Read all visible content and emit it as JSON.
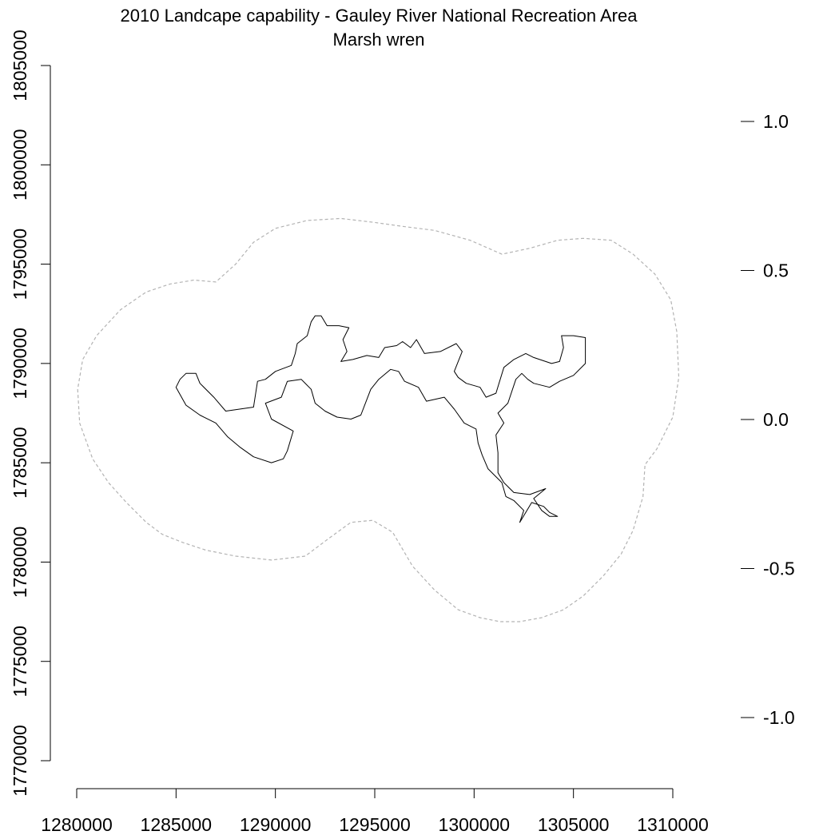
{
  "plot": {
    "title_line1": "2010 Landcape capability - Gauley River National Recreation Area",
    "title_line2": "Marsh wren"
  },
  "chart_data": {
    "type": "map",
    "title": "2010 Landcape capability - Gauley River National Recreation Area",
    "subtitle": "Marsh wren",
    "xlim": [
      1280000,
      1310000
    ],
    "ylim": [
      1770000,
      1805000
    ],
    "x_ticks": [
      1280000,
      1285000,
      1290000,
      1295000,
      1300000,
      1305000,
      1310000
    ],
    "y_ticks": [
      1770000,
      1775000,
      1780000,
      1785000,
      1790000,
      1795000,
      1800000,
      1805000
    ],
    "legend_scale_ticks": [
      1.0,
      0.5,
      0.0,
      -0.5,
      -1.0
    ],
    "buffer_color": "#b3b3b3",
    "boundary_color": "#000000",
    "buffer_boundary": [
      [
        1280050,
        1788700
      ],
      [
        1280150,
        1787000
      ],
      [
        1280800,
        1785200
      ],
      [
        1281600,
        1784000
      ],
      [
        1282500,
        1783000
      ],
      [
        1283500,
        1782000
      ],
      [
        1284300,
        1781400
      ],
      [
        1285300,
        1781000
      ],
      [
        1286500,
        1780600
      ],
      [
        1288000,
        1780300
      ],
      [
        1289800,
        1780100
      ],
      [
        1291500,
        1780300
      ],
      [
        1292700,
        1781200
      ],
      [
        1293800,
        1782000
      ],
      [
        1294900,
        1782100
      ],
      [
        1295900,
        1781500
      ],
      [
        1296900,
        1779800
      ],
      [
        1298000,
        1778600
      ],
      [
        1299200,
        1777600
      ],
      [
        1300300,
        1777200
      ],
      [
        1301300,
        1777000
      ],
      [
        1302300,
        1777000
      ],
      [
        1303400,
        1777200
      ],
      [
        1304500,
        1777600
      ],
      [
        1305500,
        1778300
      ],
      [
        1306500,
        1779300
      ],
      [
        1307400,
        1780400
      ],
      [
        1308000,
        1781600
      ],
      [
        1308500,
        1783300
      ],
      [
        1308600,
        1784900
      ],
      [
        1309200,
        1785700
      ],
      [
        1310000,
        1787300
      ],
      [
        1310300,
        1789300
      ],
      [
        1310200,
        1791600
      ],
      [
        1309900,
        1793200
      ],
      [
        1309100,
        1794500
      ],
      [
        1308000,
        1795500
      ],
      [
        1306900,
        1796200
      ],
      [
        1305500,
        1796300
      ],
      [
        1304200,
        1796200
      ],
      [
        1302800,
        1795800
      ],
      [
        1301400,
        1795500
      ],
      [
        1299800,
        1796200
      ],
      [
        1298000,
        1796700
      ],
      [
        1296400,
        1796900
      ],
      [
        1295000,
        1797100
      ],
      [
        1293300,
        1797300
      ],
      [
        1291600,
        1797200
      ],
      [
        1290000,
        1796800
      ],
      [
        1288900,
        1796100
      ],
      [
        1288000,
        1795000
      ],
      [
        1287000,
        1794100
      ],
      [
        1285900,
        1794200
      ],
      [
        1284700,
        1794000
      ],
      [
        1283500,
        1793600
      ],
      [
        1282200,
        1792700
      ],
      [
        1281000,
        1791400
      ],
      [
        1280300,
        1790200
      ],
      [
        1280050,
        1788700
      ]
    ],
    "park_boundary": [
      [
        1285000,
        1788800
      ],
      [
        1285200,
        1789200
      ],
      [
        1285500,
        1789500
      ],
      [
        1286000,
        1789500
      ],
      [
        1286200,
        1789000
      ],
      [
        1286900,
        1788300
      ],
      [
        1287500,
        1787600
      ],
      [
        1288900,
        1787800
      ],
      [
        1289100,
        1789100
      ],
      [
        1289500,
        1789200
      ],
      [
        1290000,
        1789600
      ],
      [
        1290800,
        1789900
      ],
      [
        1291000,
        1790500
      ],
      [
        1291100,
        1791000
      ],
      [
        1291600,
        1791400
      ],
      [
        1291800,
        1792100
      ],
      [
        1292000,
        1792400
      ],
      [
        1292300,
        1792400
      ],
      [
        1292600,
        1791900
      ],
      [
        1293200,
        1791900
      ],
      [
        1293700,
        1791800
      ],
      [
        1293400,
        1791200
      ],
      [
        1293600,
        1790600
      ],
      [
        1293300,
        1790100
      ],
      [
        1293900,
        1790200
      ],
      [
        1294600,
        1790400
      ],
      [
        1295200,
        1790300
      ],
      [
        1295500,
        1790800
      ],
      [
        1296100,
        1790900
      ],
      [
        1296400,
        1791100
      ],
      [
        1296800,
        1790800
      ],
      [
        1297100,
        1791200
      ],
      [
        1297500,
        1790500
      ],
      [
        1298300,
        1790600
      ],
      [
        1299100,
        1791000
      ],
      [
        1299400,
        1790600
      ],
      [
        1299000,
        1789600
      ],
      [
        1299200,
        1789300
      ],
      [
        1299600,
        1789000
      ],
      [
        1300300,
        1788800
      ],
      [
        1300600,
        1788300
      ],
      [
        1301100,
        1788500
      ],
      [
        1301500,
        1789800
      ],
      [
        1302000,
        1790200
      ],
      [
        1302600,
        1790500
      ],
      [
        1303000,
        1790300
      ],
      [
        1303900,
        1790000
      ],
      [
        1304300,
        1790100
      ],
      [
        1304500,
        1790800
      ],
      [
        1304400,
        1791400
      ],
      [
        1305000,
        1791400
      ],
      [
        1305600,
        1791300
      ],
      [
        1305600,
        1790000
      ],
      [
        1305000,
        1789400
      ],
      [
        1304300,
        1789100
      ],
      [
        1303800,
        1788800
      ],
      [
        1303000,
        1789000
      ],
      [
        1302700,
        1789200
      ],
      [
        1302400,
        1789500
      ],
      [
        1302100,
        1789200
      ],
      [
        1301700,
        1788000
      ],
      [
        1301200,
        1787500
      ],
      [
        1301500,
        1787000
      ],
      [
        1301100,
        1786400
      ],
      [
        1301200,
        1785500
      ],
      [
        1301200,
        1784500
      ],
      [
        1301500,
        1784000
      ],
      [
        1302000,
        1783500
      ],
      [
        1302800,
        1783400
      ],
      [
        1303600,
        1783700
      ],
      [
        1303000,
        1783200
      ],
      [
        1303400,
        1782600
      ],
      [
        1303800,
        1782300
      ],
      [
        1304200,
        1782300
      ],
      [
        1303800,
        1782500
      ],
      [
        1303500,
        1782800
      ],
      [
        1302900,
        1783000
      ],
      [
        1302300,
        1782000
      ],
      [
        1302500,
        1782600
      ],
      [
        1302000,
        1783100
      ],
      [
        1301600,
        1783300
      ],
      [
        1301400,
        1784000
      ],
      [
        1300700,
        1784700
      ],
      [
        1300400,
        1785400
      ],
      [
        1300200,
        1786000
      ],
      [
        1300100,
        1786700
      ],
      [
        1299500,
        1787000
      ],
      [
        1299000,
        1787700
      ],
      [
        1298500,
        1788300
      ],
      [
        1297600,
        1788100
      ],
      [
        1297200,
        1788800
      ],
      [
        1296500,
        1789100
      ],
      [
        1296200,
        1789600
      ],
      [
        1295800,
        1789700
      ],
      [
        1295200,
        1789200
      ],
      [
        1294800,
        1788700
      ],
      [
        1294300,
        1787400
      ],
      [
        1293800,
        1787200
      ],
      [
        1293100,
        1787300
      ],
      [
        1292500,
        1787600
      ],
      [
        1292000,
        1788000
      ],
      [
        1291800,
        1788700
      ],
      [
        1291300,
        1789200
      ],
      [
        1290600,
        1789100
      ],
      [
        1290300,
        1788300
      ],
      [
        1289500,
        1788000
      ],
      [
        1289800,
        1787200
      ],
      [
        1290900,
        1786600
      ],
      [
        1290600,
        1785600
      ],
      [
        1290400,
        1785200
      ],
      [
        1289800,
        1785000
      ],
      [
        1288900,
        1785300
      ],
      [
        1288200,
        1785800
      ],
      [
        1287600,
        1786300
      ],
      [
        1287000,
        1787000
      ],
      [
        1286200,
        1787400
      ],
      [
        1285500,
        1787900
      ],
      [
        1285000,
        1788800
      ]
    ]
  }
}
